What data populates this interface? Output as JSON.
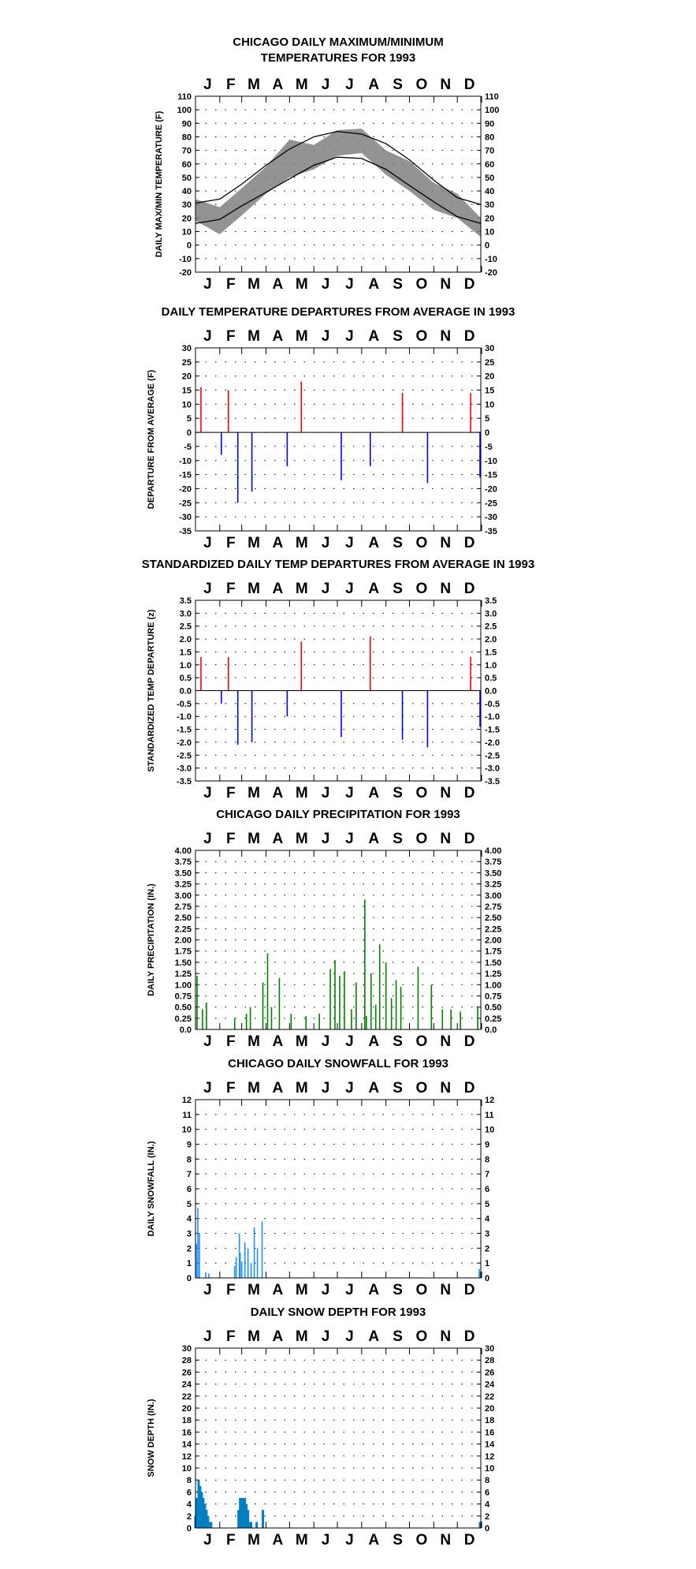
{
  "months": [
    "J",
    "F",
    "M",
    "A",
    "M",
    "J",
    "J",
    "A",
    "S",
    "O",
    "N",
    "D"
  ],
  "chart_data": [
    {
      "type": "line",
      "title": [
        "CHICAGO DAILY MAXIMUM/MINIMUM",
        "TEMPERATURES FOR 1993"
      ],
      "ylabel": "DAILY MAX/MIN TEMPERATURE (F)",
      "ylim": [
        -20,
        110
      ],
      "yticks": [
        "110",
        "100",
        "90",
        "80",
        "70",
        "60",
        "50",
        "40",
        "30",
        "20",
        "10",
        "0",
        "-10",
        "-20"
      ],
      "grid": true,
      "x": [
        "Jan 1",
        "Feb 1",
        "Mar 1",
        "Apr 1",
        "May 1",
        "Jun 1",
        "Jul 1",
        "Aug 1",
        "Sep 1",
        "Oct 1",
        "Nov 1",
        "Dec 1",
        "Dec 31"
      ],
      "series": [
        {
          "role": "normal_max",
          "color": "#000000",
          "values": [
            31,
            34,
            45,
            59,
            71,
            80,
            84,
            82,
            75,
            63,
            48,
            35,
            30
          ]
        },
        {
          "role": "normal_min",
          "color": "#000000",
          "values": [
            16,
            19,
            29,
            39,
            49,
            59,
            65,
            64,
            56,
            44,
            32,
            21,
            16
          ]
        },
        {
          "role": "daily_range",
          "color": "#808080",
          "values_max": [
            34,
            28,
            42,
            58,
            78,
            74,
            85,
            86,
            70,
            62,
            46,
            38,
            20
          ],
          "values_min": [
            18,
            8,
            22,
            38,
            50,
            56,
            66,
            68,
            52,
            40,
            26,
            20,
            6
          ]
        }
      ]
    },
    {
      "type": "bar",
      "title": [
        "DAILY TEMPERATURE DEPARTURES FROM AVERAGE IN 1993"
      ],
      "ylabel": "DEPARTURE FROM AVERAGE (F)",
      "ylim": [
        -35,
        30
      ],
      "yticks": [
        "30",
        "25",
        "20",
        "15",
        "10",
        "5",
        "0",
        "-5",
        "-10",
        "-15",
        "-20",
        "-25",
        "-30",
        "-35"
      ],
      "grid": true,
      "colors": {
        "positive": "#ff0000",
        "negative": "#0000ff"
      },
      "x": [
        "Jan 8",
        "Feb 3",
        "Feb 12",
        "Feb 24",
        "Mar 14",
        "Apr 28",
        "May 16",
        "Jul 6",
        "Aug 12",
        "Sep 22",
        "Oct 24",
        "Dec 18",
        "Dec 30"
      ],
      "values": [
        16,
        -8,
        15,
        -25,
        -21,
        -12,
        18,
        -17,
        -12,
        14,
        -18,
        14,
        -16
      ]
    },
    {
      "type": "bar",
      "title": [
        "STANDARDIZED DAILY TEMP DEPARTURES FROM AVERAGE IN 1993"
      ],
      "ylabel": "STANDARDIZED TEMP DEPARTURE (z)",
      "ylim": [
        -3.5,
        3.5
      ],
      "yticks": [
        "3.5",
        "3.0",
        "2.5",
        "2.0",
        "1.5",
        "1.0",
        "0.5",
        "0.0",
        "-0.5",
        "-1.0",
        "-1.5",
        "-2.0",
        "-2.5",
        "-3.0",
        "-3.5"
      ],
      "yticks_right": [
        "3.5",
        "3.0",
        "2.5",
        "2.0",
        "1.5",
        "1.0",
        "0.5",
        "0.0",
        "-0.5",
        "-1.0",
        "-1.5",
        "-2.0",
        "-2.5",
        "-3.0",
        "-3.5"
      ],
      "grid": true,
      "colors": {
        "positive": "#ff0000",
        "negative": "#0000ff"
      },
      "x": [
        "Jan 8",
        "Feb 3",
        "Feb 12",
        "Feb 24",
        "Mar 14",
        "Apr 28",
        "May 16",
        "Jul 6",
        "Aug 12",
        "Sep 22",
        "Oct 24",
        "Dec 18",
        "Dec 30"
      ],
      "values": [
        1.3,
        -0.5,
        1.3,
        -2.1,
        -2.0,
        -1.0,
        1.9,
        -1.8,
        2.1,
        -1.9,
        -2.2,
        1.3,
        -1.4
      ]
    },
    {
      "type": "bar",
      "title": [
        "CHICAGO DAILY PRECIPITATION FOR 1993"
      ],
      "ylabel": "DAILY PRECIPITATION (IN.)",
      "ylim": [
        0,
        4
      ],
      "yticks": [
        "4.00",
        "3.75",
        "3.50",
        "3.25",
        "3.00",
        "2.75",
        "2.50",
        "2.25",
        "2.00",
        "1.75",
        "1.50",
        "1.25",
        "1.00",
        "0.75",
        "0.50",
        "0.25",
        "0.0"
      ],
      "grid": true,
      "colors": {
        "bar": "#008000"
      },
      "x": [
        "Jan 3",
        "Jan 10",
        "Jan 15",
        "Feb 20",
        "Mar 7",
        "Mar 12",
        "Mar 28",
        "Apr 3",
        "Apr 8",
        "Apr 18",
        "May 3",
        "May 22",
        "Jun 8",
        "Jun 22",
        "Jun 28",
        "Jul 4",
        "Jul 10",
        "Jul 19",
        "Jul 25",
        "Aug 5",
        "Aug 7",
        "Aug 13",
        "Aug 19",
        "Aug 24",
        "Sep 1",
        "Sep 8",
        "Sep 14",
        "Sep 20",
        "Oct 12",
        "Oct 29",
        "Nov 12",
        "Nov 23",
        "Dec 5",
        "Dec 27"
      ],
      "values": [
        1.2,
        0.45,
        0.6,
        0.25,
        0.35,
        0.5,
        1.05,
        1.7,
        0.5,
        1.15,
        0.35,
        0.3,
        0.35,
        1.35,
        1.55,
        1.2,
        1.3,
        0.45,
        1.05,
        2.9,
        0.3,
        1.25,
        0.55,
        1.9,
        1.5,
        0.7,
        1.1,
        0.95,
        1.4,
        1.0,
        0.45,
        0.45,
        0.4,
        0.5
      ]
    },
    {
      "type": "bar",
      "title": [
        "CHICAGO DAILY SNOWFALL FOR 1993"
      ],
      "ylabel": "DAILY SNOWFALL (IN.)",
      "ylim": [
        0,
        12
      ],
      "yticks": [
        "12",
        "11",
        "10",
        "9",
        "8",
        "7",
        "6",
        "5",
        "4",
        "3",
        "2",
        "1",
        "0"
      ],
      "grid": true,
      "colors": {
        "bar": "#1e90ff"
      },
      "x": [
        "Jan 2",
        "Jan 4",
        "Jan 6",
        "Jan 14",
        "Jan 18",
        "Feb 20",
        "Feb 22",
        "Feb 26",
        "Feb 27",
        "Mar 1",
        "Mar 5",
        "Mar 9",
        "Mar 13",
        "Mar 17",
        "Mar 21",
        "Mar 27",
        "Dec 29",
        "Dec 30"
      ],
      "values": [
        2.3,
        4.7,
        3.0,
        0.4,
        0.3,
        0.8,
        1.4,
        3.0,
        1.7,
        1.1,
        2.4,
        2.0,
        1.0,
        3.4,
        2.0,
        3.8,
        0.6,
        0.4
      ]
    },
    {
      "type": "area",
      "title": [
        "DAILY SNOW DEPTH FOR 1993"
      ],
      "ylabel": "SNOW DEPTH (IN.)",
      "ylim": [
        0,
        30
      ],
      "yticks": [
        "30",
        "28",
        "26",
        "24",
        "22",
        "20",
        "18",
        "16",
        "14",
        "12",
        "10",
        "8",
        "6",
        "4",
        "2",
        "0"
      ],
      "grid": true,
      "colors": {
        "bar": "#0080c0"
      },
      "x": [
        "Jan 1",
        "Jan 3",
        "Jan 5",
        "Jan 7",
        "Jan 9",
        "Jan 11",
        "Jan 13",
        "Jan 15",
        "Jan 17",
        "Jan 19",
        "Jan 21",
        "Feb 25",
        "Feb 27",
        "Mar 1",
        "Mar 3",
        "Mar 5",
        "Mar 7",
        "Mar 9",
        "Mar 11",
        "Mar 13",
        "Mar 20",
        "Mar 28",
        "Dec 30"
      ],
      "values": [
        2,
        5,
        8,
        7,
        6,
        5,
        4,
        3,
        2,
        1,
        1,
        3,
        5,
        5,
        5,
        5,
        4,
        3,
        1,
        1,
        1,
        3,
        1
      ]
    }
  ]
}
